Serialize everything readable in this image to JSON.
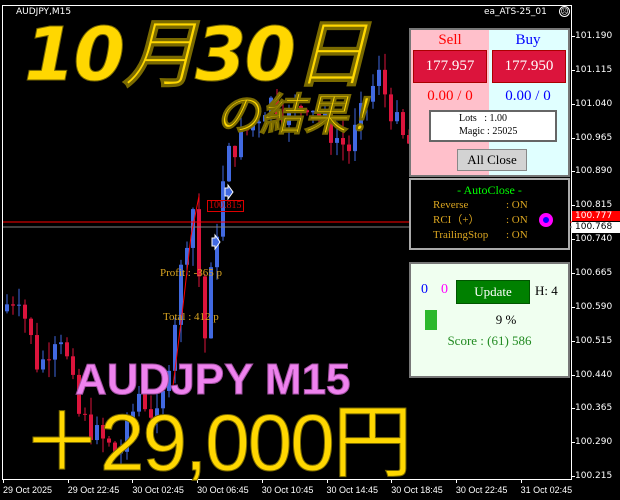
{
  "chart_header": {
    "symbol": "AUDJPY,M15",
    "ea_name": "ea_ATS-25_01",
    "ea_status_icon": "sad-face-icon"
  },
  "price_axis": [
    "101.190",
    "101.115",
    "101.040",
    "100.965",
    "100.890",
    "100.815",
    "100.740",
    "100.665",
    "100.590",
    "100.515",
    "100.440",
    "100.365",
    "100.290",
    "100.215"
  ],
  "bid_label": "100.777",
  "ask_label": "100.768",
  "time_axis": [
    "29 Oct 2025",
    "29 Oct 22:45",
    "30 Oct 02:45",
    "30 Oct 06:45",
    "30 Oct 10:45",
    "30 Oct 14:45",
    "30 Oct 18:45",
    "30 Oct 22:45",
    "31 Oct 02:45"
  ],
  "chart_annotations": {
    "price_box": "100.815",
    "profit": "Profit : -365 p",
    "total": "Total : 412 p"
  },
  "colors": {
    "bull": "#4169e1",
    "bear": "#dc143c",
    "bid_line": "#ff0000",
    "ask_line": "#808080",
    "accent": "#ffd700"
  },
  "trade_panel": {
    "sell_label": "Sell",
    "buy_label": "Buy",
    "sell_price": "177.957",
    "buy_price": "177.950",
    "sell_pos": "0.00 / 0",
    "buy_pos": "0.00 / 0",
    "lots": "Lots   : 1.00",
    "magic": "Magic : 25025",
    "all_close": "All Close"
  },
  "autoclose_panel": {
    "title": "- AutoClose -",
    "rows": [
      {
        "label": "Reverse",
        "value": ": ON"
      },
      {
        "label": "RCI（+）",
        "value": ": ON"
      },
      {
        "label": "TrailingStop",
        "value": ": ON"
      }
    ],
    "indicator_icon": "magenta-ring-icon"
  },
  "score_panel": {
    "count_blue": "0",
    "count_magenta": "0",
    "update": "Update",
    "h": "H: 4",
    "percent": "9 %",
    "progress_percent": 9,
    "score": "Score : (61) 586"
  },
  "overlay": {
    "date": "10月30日",
    "result": "の結果！",
    "pair": "AUDJPY M15",
    "amount": "＋29,000円"
  }
}
